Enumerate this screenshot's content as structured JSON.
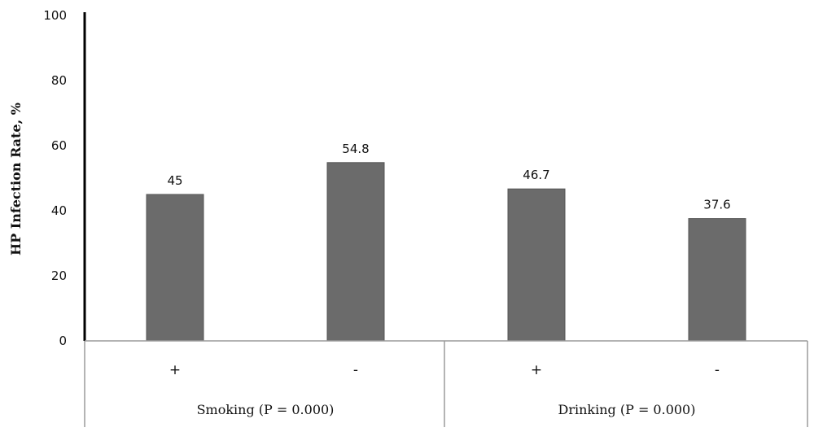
{
  "chart_data": {
    "type": "bar",
    "title": "",
    "ylabel": "HP Infection Rate, %",
    "xlabel": "",
    "ylim": [
      0,
      100
    ],
    "yticks": [
      0,
      20,
      40,
      60,
      80,
      100
    ],
    "groups": [
      {
        "label": "Smoking (P = 0.000)",
        "categories": [
          "+",
          "-"
        ],
        "values": [
          45,
          54.8
        ]
      },
      {
        "label": "Drinking (P = 0.000)",
        "categories": [
          "+",
          "-"
        ],
        "values": [
          46.7,
          37.6
        ]
      }
    ],
    "data_labels": [
      "45",
      "54.8",
      "46.7",
      "37.6"
    ],
    "bar_color": "#6b6b6b",
    "grid": false,
    "legend": "none"
  }
}
